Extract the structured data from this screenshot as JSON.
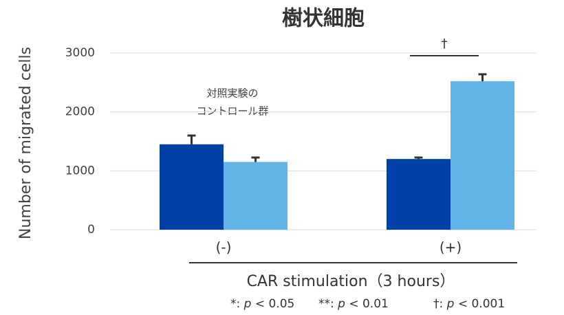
{
  "chart_data": {
    "type": "bar",
    "title": "樹状細胞",
    "y_label": "Number of migrated cells",
    "x_label": "CAR stimulation（3 hours）",
    "categories": [
      "(-)",
      "(+)"
    ],
    "series": [
      {
        "color": "#0041a8",
        "values": [
          1450,
          1200
        ],
        "errors": [
          160,
          37
        ]
      },
      {
        "color": "#62b4e6",
        "values": [
          1150,
          2520
        ],
        "errors": [
          87,
          130
        ]
      }
    ],
    "ylim": [
      0,
      3000
    ],
    "yticks": [
      0,
      1000,
      2000,
      3000
    ],
    "grid": true,
    "annotation": [
      "対照実験の",
      "コントロール群"
    ],
    "significance": "†",
    "footnotes": [
      [
        "*: ",
        "p",
        " < 0.05"
      ],
      [
        "**: ",
        "p",
        " < 0.01"
      ],
      [
        "†: ",
        "p",
        " < 0.001"
      ]
    ]
  }
}
